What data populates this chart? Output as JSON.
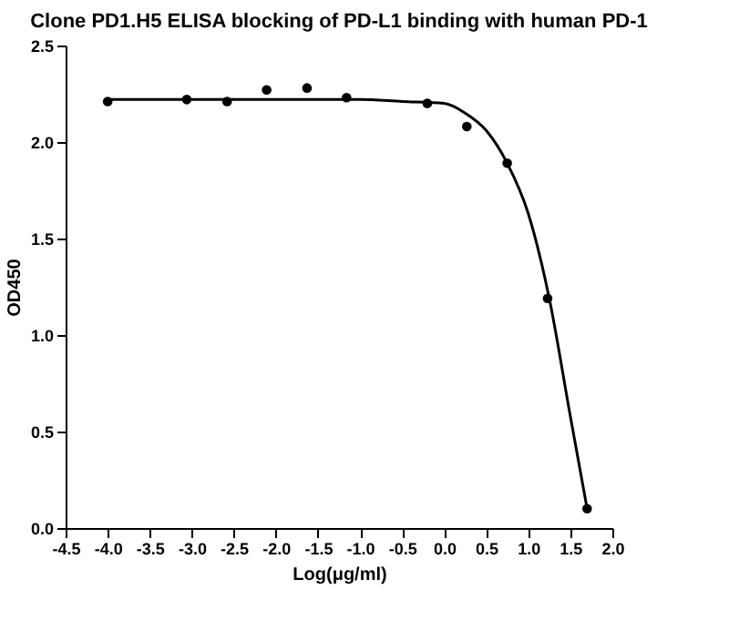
{
  "chart_data": {
    "type": "scatter",
    "title": "Clone PD1.H5 ELISA blocking of PD-L1 binding with human PD-1",
    "xlabel": "Log(μg/ml)",
    "ylabel": "OD450",
    "series": [
      {
        "type": "scatter",
        "color": "#000000",
        "marker": "circle",
        "x": [
          -4.0,
          -3.06,
          -2.58,
          -2.11,
          -1.63,
          -1.16,
          -0.2,
          0.27,
          0.75,
          1.23,
          1.7
        ],
        "values": [
          2.21,
          2.22,
          2.21,
          2.27,
          2.28,
          2.23,
          2.2,
          2.08,
          1.89,
          1.19,
          0.1
        ]
      },
      {
        "type": "line",
        "color": "#000000",
        "line_style": "solid",
        "x": [
          -4.0,
          -2.0,
          -1.0,
          -0.5,
          0.0,
          0.25,
          0.5,
          0.75,
          1.0,
          1.25,
          1.5,
          1.7
        ],
        "values": [
          2.22,
          2.22,
          2.22,
          2.21,
          2.2,
          2.15,
          2.06,
          1.89,
          1.63,
          1.19,
          0.58,
          0.1
        ]
      }
    ],
    "xlim": [
      -4.5,
      2.0
    ],
    "ylim": [
      0.0,
      2.5
    ],
    "xticks": [
      {
        "value": -4.5,
        "label": "-4.5"
      },
      {
        "value": -4.0,
        "label": "-4.0"
      },
      {
        "value": -3.5,
        "label": "-3.5"
      },
      {
        "value": -3.0,
        "label": "-3.0"
      },
      {
        "value": -2.5,
        "label": "-2.5"
      },
      {
        "value": -2.0,
        "label": "-2.0"
      },
      {
        "value": -1.5,
        "label": "-1.5"
      },
      {
        "value": -1.0,
        "label": "-1.0"
      },
      {
        "value": -0.5,
        "label": "-0.5"
      },
      {
        "value": 0.0,
        "label": "0.0"
      },
      {
        "value": 0.5,
        "label": "0.5"
      },
      {
        "value": 1.0,
        "label": "1.0"
      },
      {
        "value": 1.5,
        "label": "1.5"
      },
      {
        "value": 2.0,
        "label": "2.0"
      }
    ],
    "yticks": [
      {
        "value": 0.0,
        "label": "0.0"
      },
      {
        "value": 0.5,
        "label": "0.5"
      },
      {
        "value": 1.0,
        "label": "1.0"
      },
      {
        "value": 1.5,
        "label": "1.5"
      },
      {
        "value": 2.0,
        "label": "2.0"
      },
      {
        "value": 2.5,
        "label": "2.5"
      }
    ],
    "grid": false,
    "legend": false
  }
}
